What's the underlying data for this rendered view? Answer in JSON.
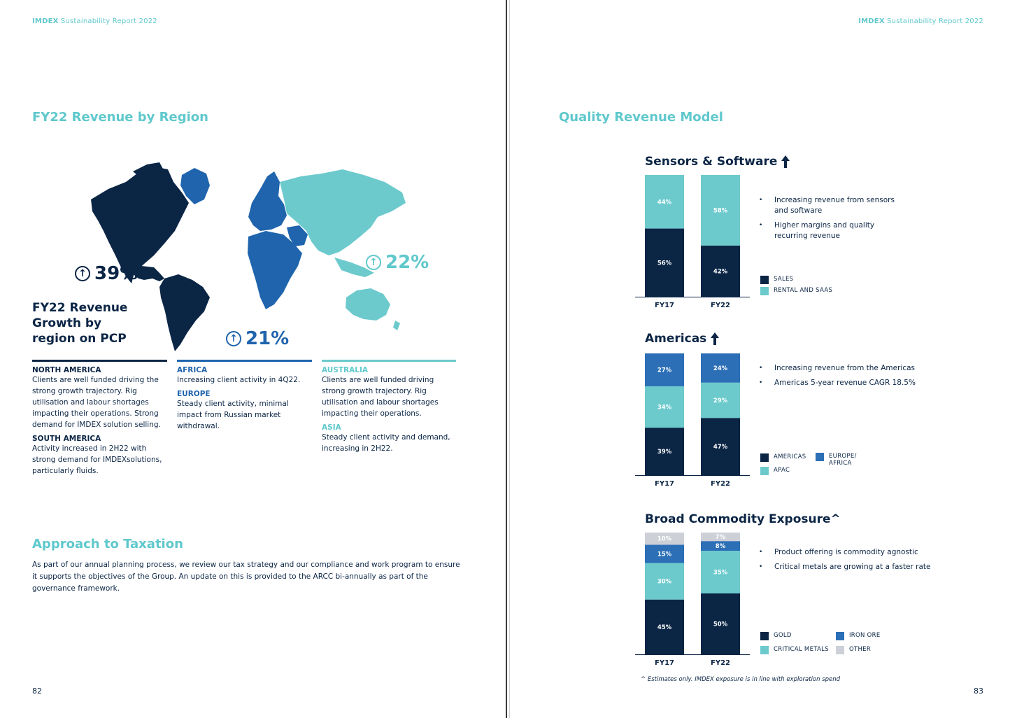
{
  "colors": {
    "navy": "#0b2545",
    "blue": "#2c6fb7",
    "teal": "#6ccacd",
    "grey": "#cdd0d6",
    "accent": "#5fc8cc"
  },
  "left": {
    "header_brand": "IMDEX",
    "header_rest": "Sustainability Report 2022",
    "section_title": "FY22 Revenue by Region",
    "growth_title_lines": [
      "FY22 Revenue",
      "Growth by",
      "region on PCP"
    ],
    "americas_pct": "39%",
    "africa_europe_pct": "21%",
    "asia_pac_pct": "22%",
    "north_america_head": "NORTH AMERICA",
    "north_america_text": "Clients are well funded driving the strong growth trajectory. Rig utilisation and labour shortages impacting their operations. Strong demand for IMDEX solution selling.",
    "south_america_head": "SOUTH AMERICA",
    "south_america_text": "Activity increased in 2H22 with strong demand for IMDEXsolutions, particularly fluids.",
    "africa_head": "AFRICA",
    "africa_text": "Increasing client activity in 4Q22.",
    "europe_head": "EUROPE",
    "europe_text": "Steady client activity, minimal impact from Russian market withdrawal.",
    "australia_head": "AUSTRALIA",
    "australia_text": "Clients are well funded driving strong growth trajectory. Rig utilisation and labour shortages impacting their operations.",
    "asia_head": "ASIA",
    "asia_text": "Steady client activity and demand, increasing in 2H22.",
    "tax_title": "Approach to Taxation",
    "tax_text": "As part of our annual planning process, we review our tax strategy and our compliance and work program to ensure it supports the objectives of the Group. An update on this is provided to the ARCC bi-annually as part of the governance framework.",
    "page_number": "82"
  },
  "right": {
    "header_brand": "IMDEX",
    "header_rest": "Sustainability Report 2022",
    "section_title": "Quality Revenue Model",
    "page_number": "83",
    "footnote": "^ Estimates only.  IMDEX exposure is in line with exploration spend",
    "sensors": {
      "bullets": [
        "Increasing revenue from sensors and software",
        "Higher margins and quality recurring revenue"
      ]
    },
    "americas": {
      "bullets": [
        "Increasing revenue from the Americas",
        "Americas 5-year revenue CAGR 18.5%"
      ]
    },
    "commodity": {
      "bullets": [
        "Product offering is commodity agnostic",
        "Critical metals are growing at a faster rate"
      ]
    }
  },
  "chart_data": [
    {
      "type": "bar",
      "stacked": true,
      "title": "Sensors & Software",
      "categories": [
        "FY17",
        "FY22"
      ],
      "series": [
        {
          "name": "SALES",
          "color": "#0b2545",
          "values": [
            56,
            42
          ],
          "labels": [
            "56%",
            "42%"
          ]
        },
        {
          "name": "RENTAL AND SAAS",
          "color": "#6ccacd",
          "values": [
            44,
            58
          ],
          "labels": [
            "44%",
            "58%"
          ]
        }
      ],
      "ylim": [
        0,
        100
      ]
    },
    {
      "type": "bar",
      "stacked": true,
      "title": "Americas",
      "categories": [
        "FY17",
        "FY22"
      ],
      "series": [
        {
          "name": "AMERICAS",
          "color": "#0b2545",
          "values": [
            39,
            47
          ],
          "labels": [
            "39%",
            "47%"
          ]
        },
        {
          "name": "APAC",
          "color": "#6ccacd",
          "values": [
            34,
            29
          ],
          "labels": [
            "34%",
            "29%"
          ]
        },
        {
          "name": "EUROPE/ AFRICA",
          "color": "#2c6fb7",
          "values": [
            27,
            24
          ],
          "labels": [
            "27%",
            "24%"
          ]
        }
      ],
      "ylim": [
        0,
        100
      ]
    },
    {
      "type": "bar",
      "stacked": true,
      "title": "Broad Commodity Exposure^",
      "categories": [
        "FY17",
        "FY22"
      ],
      "series": [
        {
          "name": "GOLD",
          "color": "#0b2545",
          "values": [
            45,
            50
          ],
          "labels": [
            "45%",
            "50%"
          ]
        },
        {
          "name": "CRITICAL METALS",
          "color": "#6ccacd",
          "values": [
            30,
            35
          ],
          "labels": [
            "30%",
            "35%"
          ]
        },
        {
          "name": "IRON ORE",
          "color": "#2c6fb7",
          "values": [
            15,
            8
          ],
          "labels": [
            "15%",
            "8%"
          ]
        },
        {
          "name": "OTHER",
          "color": "#cdd0d6",
          "values": [
            10,
            7
          ],
          "labels": [
            "10%",
            "7%"
          ]
        }
      ],
      "ylim": [
        0,
        100
      ]
    }
  ]
}
